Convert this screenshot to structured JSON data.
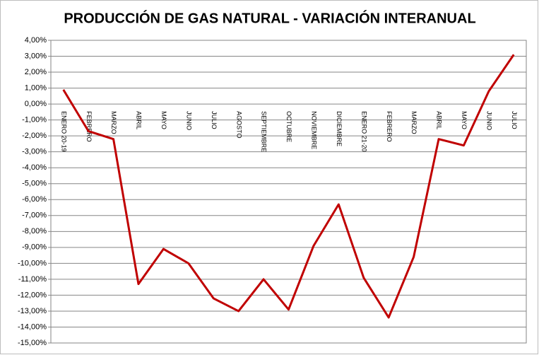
{
  "chart_data": {
    "type": "line",
    "title": "PRODUCCIÓN DE GAS NATURAL - VARIACIÓN INTERANUAL",
    "categories": [
      "ENERO 20-19",
      "FEBRERO",
      "MARZO",
      "ABRIL",
      "MAYO",
      "JUNIO",
      "JULIO",
      "AGOSTO",
      "SEPTIEMBRE",
      "OCTUBRE",
      "NOVIEMBRE",
      "DICIEMBRE",
      "ENERO 21-20",
      "FEBRERO",
      "MARZO",
      "ABRIL",
      "MAYO",
      "JUNIO",
      "JULIO"
    ],
    "values": [
      0.9,
      -1.7,
      -2.2,
      -11.3,
      -9.1,
      -10.0,
      -12.2,
      -13.0,
      -11.0,
      -12.9,
      -8.9,
      -6.3,
      -10.9,
      -13.4,
      -9.6,
      -2.2,
      -2.6,
      0.8,
      3.1
    ],
    "color": "#c00000",
    "ylim": [
      -15,
      4
    ],
    "yticks": [
      {
        "value": 4,
        "label": "4,00%"
      },
      {
        "value": 3,
        "label": "3,00%"
      },
      {
        "value": 2,
        "label": "2,00%"
      },
      {
        "value": 1,
        "label": "1,00%"
      },
      {
        "value": 0,
        "label": "0,00%"
      },
      {
        "value": -1,
        "label": "-1,00%"
      },
      {
        "value": -2,
        "label": "-2,00%"
      },
      {
        "value": -3,
        "label": "-3,00%"
      },
      {
        "value": -4,
        "label": "-4,00%"
      },
      {
        "value": -5,
        "label": "-5,00%"
      },
      {
        "value": -6,
        "label": "-6,00%"
      },
      {
        "value": -7,
        "label": "-7,00%"
      },
      {
        "value": -8,
        "label": "-8,00%"
      },
      {
        "value": -9,
        "label": "-9,00%"
      },
      {
        "value": -10,
        "label": "-10,00%"
      },
      {
        "value": -11,
        "label": "-11,00%"
      },
      {
        "value": -12,
        "label": "-12,00%"
      },
      {
        "value": -13,
        "label": "-13,00%"
      },
      {
        "value": -14,
        "label": "-14,00%"
      },
      {
        "value": -15,
        "label": "-15,00%"
      }
    ],
    "grid": true
  }
}
